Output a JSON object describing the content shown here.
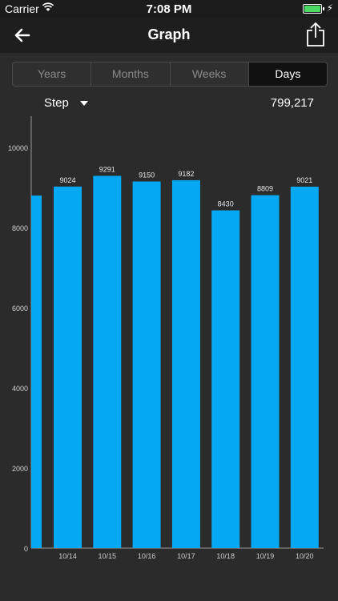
{
  "status_bar": {
    "carrier": "Carrier",
    "time": "7:08 PM"
  },
  "nav": {
    "title": "Graph"
  },
  "segments": [
    "Years",
    "Months",
    "Weeks",
    "Days"
  ],
  "active_segment": "Days",
  "metric": {
    "label": "Step",
    "total": "799,217"
  },
  "colors": {
    "bar": "#05a8f3",
    "background": "#2b2b2b"
  },
  "chart_data": {
    "type": "bar",
    "categories": [
      "",
      "10/14",
      "10/15",
      "10/16",
      "10/17",
      "10/18",
      "10/19",
      "10/20"
    ],
    "values": [
      8800,
      9024,
      9291,
      9150,
      9182,
      8430,
      8809,
      9021
    ],
    "data_labels": [
      "",
      "9024",
      "9291",
      "9150",
      "9182",
      "8430",
      "8809",
      "9021"
    ],
    "y_ticks": [
      "0",
      "2000",
      "4000",
      "6000",
      "8000",
      "10000"
    ],
    "ylim": [
      0,
      10000
    ],
    "grid": false
  }
}
